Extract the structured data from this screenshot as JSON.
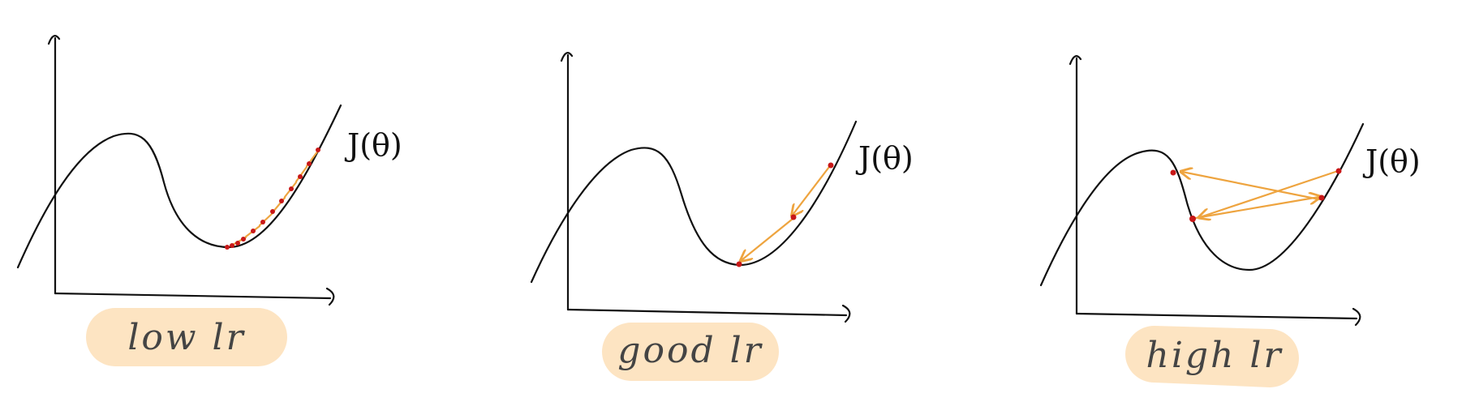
{
  "panels": [
    {
      "label": "low lr",
      "function_label": "J(θ)",
      "accent": "#eea43f",
      "step_color": "#c81818",
      "pill_color": "#fde4c2"
    },
    {
      "label": "good lr",
      "function_label": "J(θ)",
      "accent": "#eea43f",
      "step_color": "#c81818",
      "pill_color": "#fde4c2"
    },
    {
      "label": "high lr",
      "function_label": "J(θ)",
      "accent": "#eea43f",
      "step_color": "#c81818",
      "pill_color": "#fde4c2"
    }
  ]
}
